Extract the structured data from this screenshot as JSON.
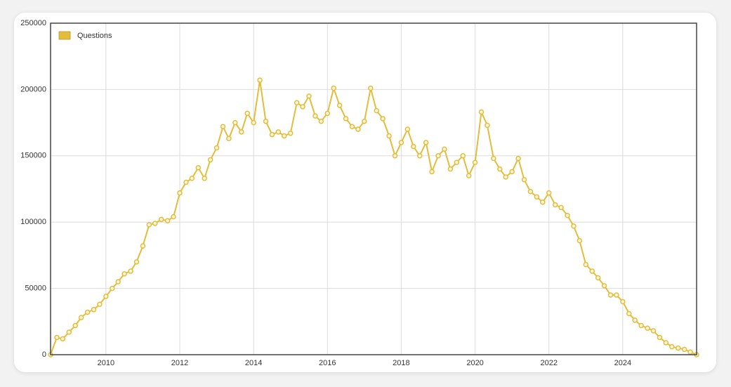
{
  "chart_data": {
    "type": "line",
    "x": [
      2008.5,
      2008.67,
      2008.83,
      2009.0,
      2009.17,
      2009.33,
      2009.5,
      2009.67,
      2009.83,
      2010.0,
      2010.17,
      2010.33,
      2010.5,
      2010.67,
      2010.83,
      2011.0,
      2011.17,
      2011.33,
      2011.5,
      2011.67,
      2011.83,
      2012.0,
      2012.17,
      2012.33,
      2012.5,
      2012.67,
      2012.83,
      2013.0,
      2013.17,
      2013.33,
      2013.5,
      2013.67,
      2013.83,
      2014.0,
      2014.17,
      2014.33,
      2014.5,
      2014.67,
      2014.83,
      2015.0,
      2015.17,
      2015.33,
      2015.5,
      2015.67,
      2015.83,
      2016.0,
      2016.17,
      2016.33,
      2016.5,
      2016.67,
      2016.83,
      2017.0,
      2017.17,
      2017.33,
      2017.5,
      2017.67,
      2017.83,
      2018.0,
      2018.17,
      2018.33,
      2018.5,
      2018.67,
      2018.83,
      2019.0,
      2019.17,
      2019.33,
      2019.5,
      2019.67,
      2019.83,
      2020.0,
      2020.17,
      2020.33,
      2020.5,
      2020.67,
      2020.83,
      2021.0,
      2021.17,
      2021.33,
      2021.5,
      2021.67,
      2021.83,
      2022.0,
      2022.17,
      2022.33,
      2022.5,
      2022.67,
      2022.83,
      2023.0,
      2023.17,
      2023.33,
      2023.5,
      2023.67,
      2023.83,
      2024.0,
      2024.17,
      2024.33,
      2024.5,
      2024.67,
      2024.83,
      2025.0,
      2025.17,
      2025.33,
      2025.5,
      2025.67,
      2025.83,
      2026.0
    ],
    "series": [
      {
        "name": "Questions",
        "color": "#e2bd3c",
        "values": [
          0,
          13000,
          12000,
          17000,
          22000,
          28000,
          32000,
          34000,
          38000,
          44000,
          50000,
          55000,
          61000,
          63000,
          70000,
          82000,
          98000,
          99000,
          102000,
          101000,
          104000,
          122000,
          130000,
          133000,
          141000,
          133000,
          147000,
          156000,
          172000,
          163000,
          175000,
          168000,
          182000,
          175000,
          207000,
          176000,
          166000,
          168000,
          165000,
          167000,
          190000,
          187000,
          195000,
          180000,
          176000,
          182000,
          201000,
          188000,
          178000,
          172000,
          170000,
          176000,
          201000,
          184000,
          178000,
          165000,
          150000,
          160000,
          170000,
          157000,
          150000,
          160000,
          138000,
          150000,
          155000,
          140000,
          145000,
          150000,
          135000,
          145000,
          183000,
          173000,
          148000,
          140000,
          134000,
          138000,
          148000,
          132000,
          123000,
          119000,
          115000,
          122000,
          113000,
          111000,
          105000,
          97000,
          86000,
          68000,
          63000,
          58000,
          52000,
          45000,
          45000,
          40000,
          31000,
          26000,
          22000,
          20000,
          18000,
          13000,
          9000,
          6000,
          5000,
          4000,
          2000,
          0
        ]
      }
    ],
    "xlim": [
      2008.5,
      2026
    ],
    "xticks": [
      2010,
      2012,
      2014,
      2016,
      2018,
      2020,
      2022,
      2024
    ],
    "ylim": [
      0,
      250000
    ],
    "yticks": [
      0,
      50000,
      100000,
      150000,
      200000,
      250000
    ],
    "grid": true,
    "legend": "upper-left"
  }
}
